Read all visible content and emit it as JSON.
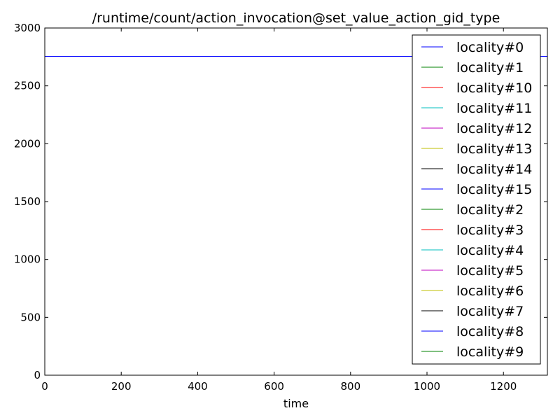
{
  "chart_data": {
    "type": "line",
    "title": "/runtime/count/action_invocation@set_value_action_gid_type",
    "xlabel": "time",
    "ylabel": "",
    "xlim": [
      0,
      1315
    ],
    "ylim": [
      0,
      3000
    ],
    "x_ticks": [
      0,
      200,
      400,
      600,
      800,
      1000,
      1200
    ],
    "y_ticks": [
      0,
      500,
      1000,
      1500,
      2000,
      2500,
      3000
    ],
    "grid": false,
    "legend_position": "top-right",
    "series": [
      {
        "name": "locality#0",
        "color": "#0000ff",
        "x": [
          0,
          1315
        ],
        "y": [
          2755,
          2755
        ]
      },
      {
        "name": "locality#1",
        "color": "#008000",
        "x": [
          0,
          1315
        ],
        "y": [
          0,
          0
        ]
      },
      {
        "name": "locality#10",
        "color": "#ff0000",
        "x": [
          0,
          1315
        ],
        "y": [
          0,
          0
        ]
      },
      {
        "name": "locality#11",
        "color": "#00bfbf",
        "x": [
          0,
          1315
        ],
        "y": [
          0,
          0
        ]
      },
      {
        "name": "locality#12",
        "color": "#bf00bf",
        "x": [
          0,
          1315
        ],
        "y": [
          0,
          0
        ]
      },
      {
        "name": "locality#13",
        "color": "#bfbf00",
        "x": [
          0,
          1315
        ],
        "y": [
          0,
          0
        ]
      },
      {
        "name": "locality#14",
        "color": "#000000",
        "x": [
          0,
          1315
        ],
        "y": [
          0,
          0
        ]
      },
      {
        "name": "locality#15",
        "color": "#0000ff",
        "x": [
          0,
          1315
        ],
        "y": [
          0,
          0
        ]
      },
      {
        "name": "locality#2",
        "color": "#008000",
        "x": [
          0,
          1315
        ],
        "y": [
          0,
          0
        ]
      },
      {
        "name": "locality#3",
        "color": "#ff0000",
        "x": [
          0,
          1315
        ],
        "y": [
          0,
          0
        ]
      },
      {
        "name": "locality#4",
        "color": "#00bfbf",
        "x": [
          0,
          1315
        ],
        "y": [
          0,
          0
        ]
      },
      {
        "name": "locality#5",
        "color": "#bf00bf",
        "x": [
          0,
          1315
        ],
        "y": [
          0,
          0
        ]
      },
      {
        "name": "locality#6",
        "color": "#bfbf00",
        "x": [
          0,
          1315
        ],
        "y": [
          0,
          0
        ]
      },
      {
        "name": "locality#7",
        "color": "#000000",
        "x": [
          0,
          1315
        ],
        "y": [
          0,
          0
        ]
      },
      {
        "name": "locality#8",
        "color": "#0000ff",
        "x": [
          0,
          1315
        ],
        "y": [
          0,
          0
        ]
      },
      {
        "name": "locality#9",
        "color": "#008000",
        "x": [
          0,
          1315
        ],
        "y": [
          0,
          0
        ]
      }
    ]
  }
}
